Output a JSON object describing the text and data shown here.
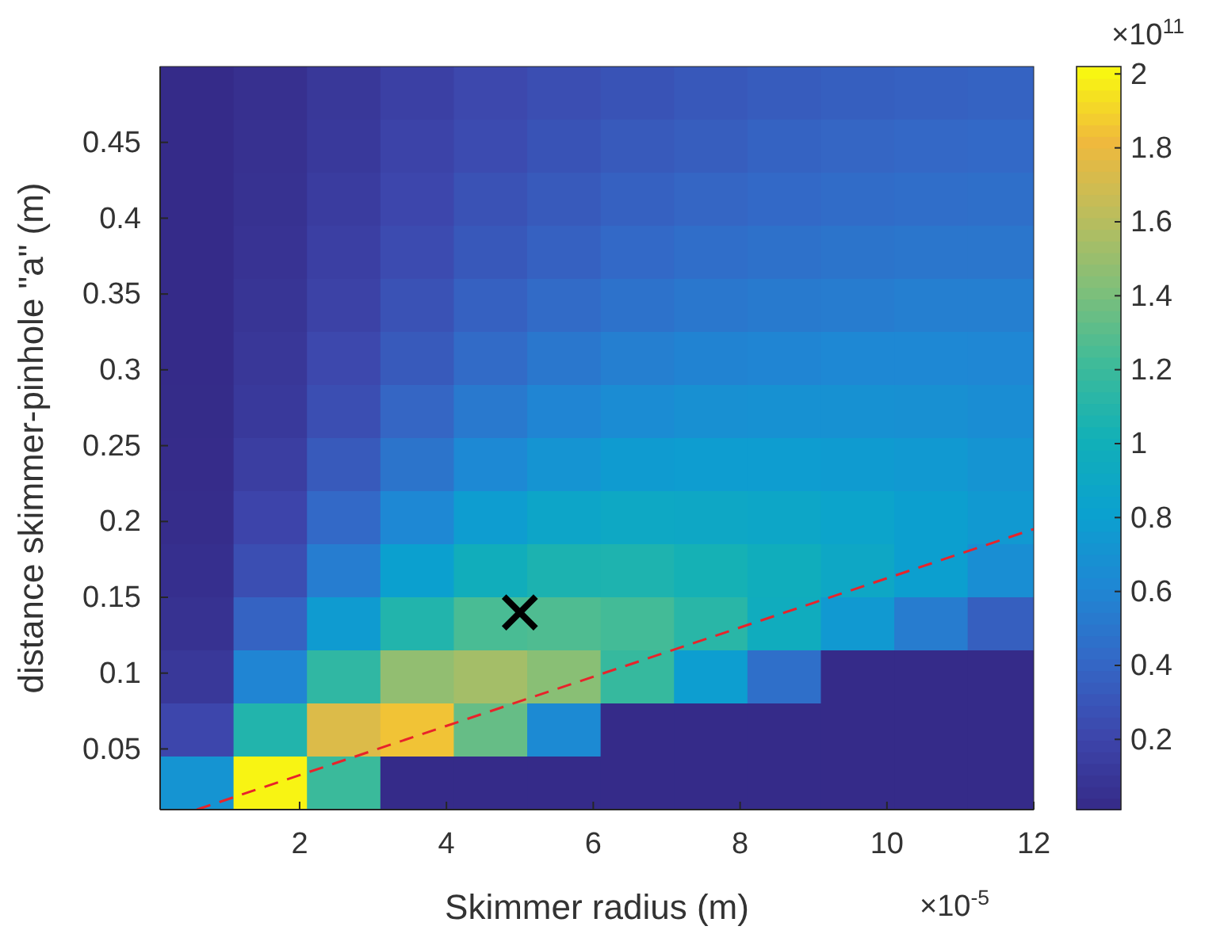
{
  "chart_data": {
    "type": "heatmap",
    "xlabel": "Skimmer radius (m)",
    "ylabel": "distance skimmer-pinhole \"a\" (m)",
    "annotations": [
      "×10$^{11}$",
      "×10$^{-5}$"
    ],
    "x": [
      0.6,
      1.6,
      2.6,
      3.6,
      4.6,
      5.6,
      6.6,
      7.6,
      8.6,
      9.6,
      10.6,
      11.6
    ],
    "y": [
      0.4825,
      0.4475,
      0.4125,
      0.3775,
      0.3425,
      0.3075,
      0.2725,
      0.2375,
      0.2025,
      0.1675,
      0.1325,
      0.0975,
      0.0625,
      0.0275
    ],
    "cells": [
      [
        0.02,
        0.051,
        0.11,
        0.17,
        0.22,
        0.26,
        0.29,
        0.32,
        0.34,
        0.36,
        0.37,
        0.38
      ],
      [
        0.02,
        0.057,
        0.12,
        0.19,
        0.24,
        0.29,
        0.33,
        0.35,
        0.38,
        0.4,
        0.41,
        0.42
      ],
      [
        0.02,
        0.065,
        0.14,
        0.21,
        0.28,
        0.33,
        0.37,
        0.4,
        0.42,
        0.44,
        0.45,
        0.46
      ],
      [
        0.02,
        0.074,
        0.16,
        0.24,
        0.32,
        0.37,
        0.42,
        0.45,
        0.47,
        0.49,
        0.5,
        0.5
      ],
      [
        0.02,
        0.086,
        0.18,
        0.28,
        0.37,
        0.43,
        0.48,
        0.51,
        0.53,
        0.54,
        0.56,
        0.56
      ],
      [
        0.02,
        0.1,
        0.22,
        0.33,
        0.43,
        0.51,
        0.56,
        0.59,
        0.6,
        0.62,
        0.62,
        0.61
      ],
      [
        0.022,
        0.12,
        0.26,
        0.4,
        0.52,
        0.6,
        0.65,
        0.68,
        0.69,
        0.69,
        0.68,
        0.66
      ],
      [
        0.027,
        0.15,
        0.33,
        0.49,
        0.63,
        0.71,
        0.77,
        0.78,
        0.78,
        0.77,
        0.75,
        0.71
      ],
      [
        0.034,
        0.2,
        0.42,
        0.62,
        0.78,
        0.87,
        0.91,
        0.9,
        0.88,
        0.85,
        0.8,
        0.75
      ],
      [
        0.046,
        0.26,
        0.55,
        0.81,
        0.98,
        1.06,
        1.07,
        1.03,
        0.97,
        0.9,
        0.8,
        0.67
      ],
      [
        0.066,
        0.38,
        0.77,
        1.09,
        1.25,
        1.27,
        1.23,
        1.12,
        0.96,
        0.75,
        0.54,
        0.36
      ],
      [
        0.11,
        0.6,
        1.15,
        1.48,
        1.54,
        1.45,
        1.18,
        0.79,
        0.46,
        0.02,
        0.02,
        0.02
      ],
      [
        0.21,
        1.09,
        1.74,
        1.85,
        1.34,
        0.64,
        0.02,
        0.02,
        0.02,
        0.02,
        0.02,
        0.02
      ],
      [
        0.71,
        2.0,
        1.2,
        0.02,
        0.02,
        0.02,
        0.02,
        0.02,
        0.02,
        0.02,
        0.02,
        0.02
      ]
    ],
    "clim": [
      0.01,
      2.02
    ],
    "cticks": [
      0.2,
      0.4,
      0.6,
      0.8,
      1,
      1.2,
      1.4,
      1.6,
      1.8,
      2
    ],
    "xlim": [
      0.1,
      12
    ],
    "xticks": [
      2,
      4,
      6,
      8,
      10,
      12
    ],
    "ylim": [
      0.01,
      0.5
    ],
    "yticks": [
      0.05,
      0.1,
      0.15,
      0.2,
      0.25,
      0.3,
      0.35,
      0.4,
      0.45
    ],
    "series": [
      {
        "type": "line",
        "x": [
          0.6,
          12
        ],
        "values": [
          0.01,
          0.195
        ],
        "color": "#e8232a",
        "line_style": "dashed"
      },
      {
        "type": "scatter",
        "x": [
          5
        ],
        "values": [
          0.14
        ],
        "color": "#000000",
        "marker": "cross"
      }
    ]
  }
}
